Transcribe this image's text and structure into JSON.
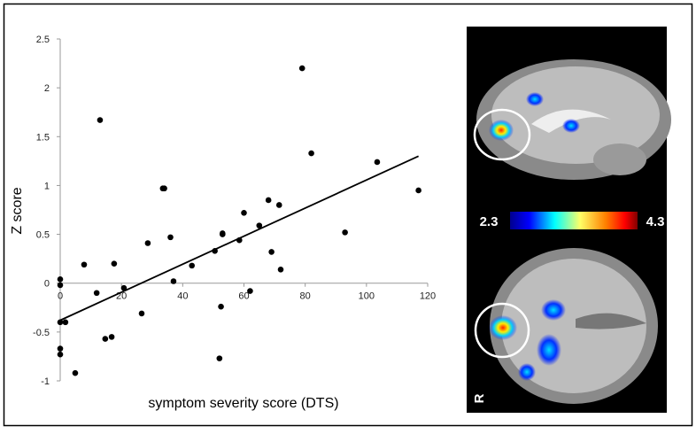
{
  "chart_data": {
    "type": "scatter",
    "x_label": "symptom severity score (DTS)",
    "y_label": "Z score",
    "xlim": [
      0,
      120
    ],
    "xticks": [
      0,
      20,
      40,
      60,
      80,
      100,
      120
    ],
    "ylim": [
      -1,
      2.5
    ],
    "yticks": [
      -1,
      -0.5,
      0,
      0.5,
      1,
      1.5,
      2,
      2.5
    ],
    "color": "#000000",
    "x": [
      0,
      0,
      0,
      1.7,
      0,
      0,
      4.9,
      7.8,
      11.9,
      13,
      14.7,
      16.8,
      17.6,
      20.8,
      26.6,
      28.6,
      33.5,
      34,
      36,
      37,
      43,
      50.5,
      52,
      52.5,
      53,
      53,
      58.5,
      60,
      62,
      65,
      68,
      69,
      71.5,
      72,
      79,
      82,
      93,
      103.5,
      117
    ],
    "y": [
      0.04,
      -0.02,
      -0.4,
      -0.4,
      -0.67,
      -0.73,
      -0.92,
      0.19,
      -0.1,
      1.67,
      -0.57,
      -0.55,
      0.2,
      -0.05,
      -0.31,
      0.41,
      0.97,
      0.97,
      0.47,
      0.02,
      0.18,
      0.33,
      -0.77,
      -0.24,
      0.5,
      0.51,
      0.44,
      0.72,
      -0.08,
      0.59,
      0.85,
      0.32,
      0.8,
      0.14,
      2.2,
      1.33,
      0.52,
      1.24,
      0.95
    ],
    "fit": {
      "x": [
        0,
        117
      ],
      "y": [
        -0.38,
        1.3
      ]
    },
    "colorbar": {
      "min": 2.3,
      "max": 4.3
    },
    "orientation_label": "R"
  }
}
